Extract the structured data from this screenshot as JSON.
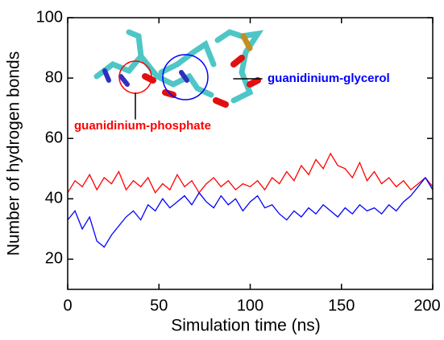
{
  "chart_data": {
    "type": "line",
    "x_label": "Simulation time (ns)",
    "y_label": "Number of hydrogen bonds",
    "xlim": [
      0,
      200
    ],
    "xticks": [
      0,
      50,
      100,
      150,
      200
    ],
    "ylim": [
      10,
      100
    ],
    "yticks": [
      20,
      40,
      60,
      80,
      100
    ],
    "x": [
      0,
      4,
      8,
      12,
      16,
      20,
      24,
      28,
      32,
      36,
      40,
      44,
      48,
      52,
      56,
      60,
      64,
      68,
      72,
      76,
      80,
      84,
      88,
      92,
      96,
      100,
      104,
      108,
      112,
      116,
      120,
      124,
      128,
      132,
      136,
      140,
      144,
      148,
      152,
      156,
      160,
      164,
      168,
      172,
      176,
      180,
      184,
      188,
      192,
      196,
      200
    ],
    "series": [
      {
        "name": "guanidinium-phosphate",
        "color": "#ff0000",
        "values": [
          42,
          46,
          44,
          48,
          43,
          47,
          45,
          49,
          43,
          46,
          44,
          47,
          42,
          45,
          43,
          48,
          44,
          46,
          42,
          45,
          47,
          44,
          46,
          43,
          45,
          44,
          46,
          43,
          47,
          45,
          49,
          46,
          51,
          48,
          53,
          50,
          55,
          51,
          50,
          47,
          52,
          46,
          49,
          45,
          47,
          44,
          46,
          43,
          45,
          47,
          44
        ]
      },
      {
        "name": "guanidinium-glycerol",
        "color": "#0000ff",
        "values": [
          33,
          36,
          30,
          34,
          26,
          24,
          28,
          31,
          34,
          36,
          33,
          38,
          36,
          40,
          37,
          39,
          41,
          38,
          42,
          39,
          37,
          41,
          38,
          40,
          36,
          39,
          41,
          37,
          38,
          35,
          33,
          36,
          34,
          37,
          35,
          38,
          36,
          34,
          37,
          35,
          38,
          36,
          37,
          35,
          38,
          36,
          39,
          41,
          44,
          47,
          43
        ]
      }
    ]
  }
}
